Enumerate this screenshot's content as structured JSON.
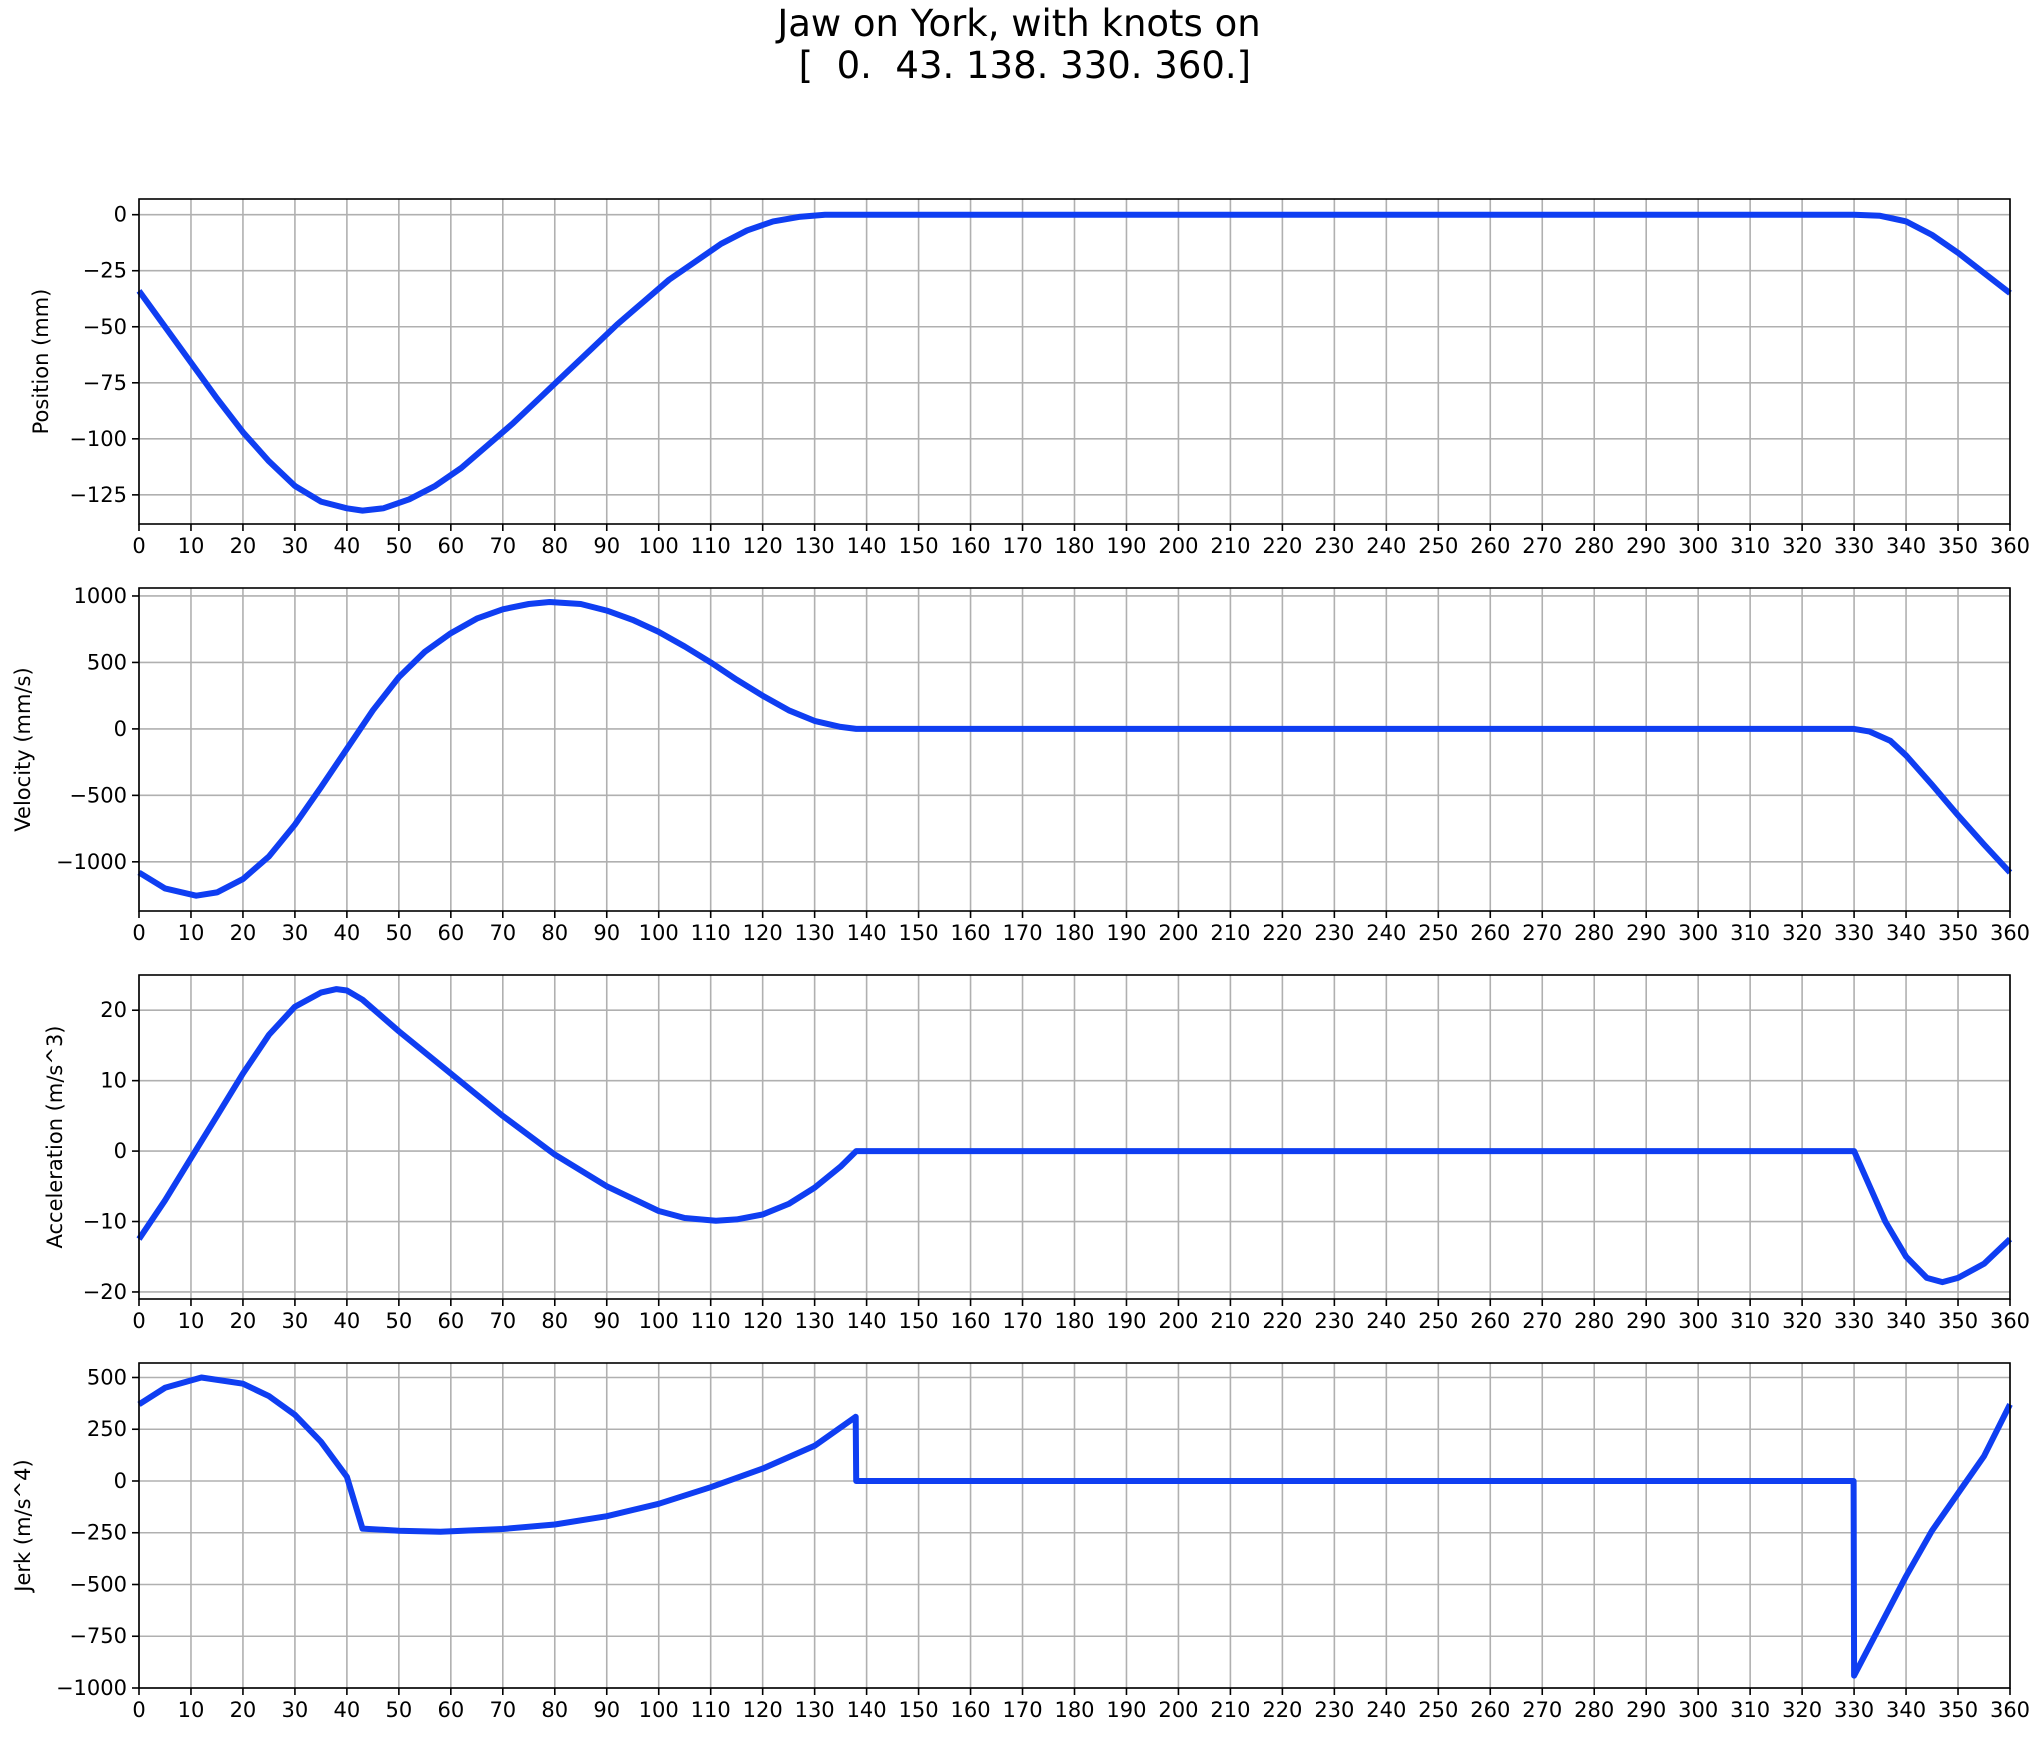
{
  "title": {
    "line1": "Jaw on York, with knots on",
    "line2": " [  0.  43. 138. 330. 360.]"
  },
  "colors": {
    "line": "#0f3ef2",
    "grid": "#b0b0b0",
    "axes": "#000000"
  },
  "chart_data": [
    {
      "type": "line",
      "ylabel": "Position (mm)",
      "xlim": [
        0,
        360
      ],
      "ylim": [
        -138,
        7
      ],
      "xticks": [
        0,
        10,
        20,
        30,
        40,
        50,
        60,
        70,
        80,
        90,
        100,
        110,
        120,
        130,
        140,
        150,
        160,
        170,
        180,
        190,
        200,
        210,
        220,
        230,
        240,
        250,
        260,
        270,
        280,
        290,
        300,
        310,
        320,
        330,
        340,
        350,
        360
      ],
      "yticks": [
        0,
        -25,
        -50,
        -75,
        -100,
        -125
      ],
      "ytick_labels": [
        "0",
        "−25",
        "−50",
        "−75",
        "−100",
        "−125"
      ],
      "grid": true,
      "x": [
        0,
        5,
        10,
        15,
        20,
        25,
        30,
        35,
        40,
        43,
        47,
        52,
        57,
        62,
        67,
        72,
        77,
        82,
        87,
        92,
        97,
        102,
        107,
        112,
        117,
        122,
        127,
        132,
        138,
        150,
        200,
        250,
        300,
        330,
        335,
        340,
        345,
        350,
        355,
        360
      ],
      "y": [
        -34,
        -50,
        -66,
        -82,
        -97,
        -110,
        -121,
        -128,
        -131,
        -132,
        -131,
        -127,
        -121,
        -113,
        -103,
        -93,
        -82,
        -71,
        -60,
        -49,
        -39,
        -29,
        -21,
        -13,
        -7,
        -3,
        -1,
        0,
        0,
        0,
        0,
        0,
        0,
        0,
        -0.5,
        -3,
        -9,
        -17,
        -26,
        -35
      ]
    },
    {
      "type": "line",
      "ylabel": "Velocity (mm/s)",
      "xlim": [
        0,
        360
      ],
      "ylim": [
        -1370,
        1060
      ],
      "xticks": [
        0,
        10,
        20,
        30,
        40,
        50,
        60,
        70,
        80,
        90,
        100,
        110,
        120,
        130,
        140,
        150,
        160,
        170,
        180,
        190,
        200,
        210,
        220,
        230,
        240,
        250,
        260,
        270,
        280,
        290,
        300,
        310,
        320,
        330,
        340,
        350,
        360
      ],
      "yticks": [
        1000,
        500,
        0,
        -500,
        -1000
      ],
      "ytick_labels": [
        "1000",
        "500",
        "0",
        "−500",
        "−1000"
      ],
      "grid": true,
      "x": [
        0,
        5,
        11,
        15,
        20,
        25,
        30,
        35,
        40,
        45,
        50,
        55,
        60,
        65,
        70,
        75,
        79,
        85,
        90,
        95,
        100,
        105,
        110,
        115,
        120,
        125,
        130,
        135,
        138,
        150,
        200,
        250,
        300,
        330,
        333,
        337,
        340,
        345,
        350,
        355,
        360
      ],
      "y": [
        -1080,
        -1200,
        -1255,
        -1230,
        -1130,
        -960,
        -720,
        -440,
        -150,
        140,
        390,
        580,
        720,
        830,
        900,
        940,
        955,
        940,
        890,
        820,
        730,
        620,
        500,
        370,
        250,
        140,
        60,
        15,
        0,
        0,
        0,
        0,
        0,
        0,
        -20,
        -90,
        -200,
        -420,
        -650,
        -870,
        -1080
      ]
    },
    {
      "type": "line",
      "ylabel": "Acceleration (m/s^3)",
      "xlim": [
        0,
        360
      ],
      "ylim": [
        -21,
        25
      ],
      "xticks": [
        0,
        10,
        20,
        30,
        40,
        50,
        60,
        70,
        80,
        90,
        100,
        110,
        120,
        130,
        140,
        150,
        160,
        170,
        180,
        190,
        200,
        210,
        220,
        230,
        240,
        250,
        260,
        270,
        280,
        290,
        300,
        310,
        320,
        330,
        340,
        350,
        360
      ],
      "yticks": [
        20,
        10,
        0,
        -10,
        -20
      ],
      "ytick_labels": [
        "20",
        "10",
        "0",
        "−10",
        "−20"
      ],
      "grid": true,
      "x": [
        0,
        5,
        10,
        15,
        20,
        25,
        30,
        35,
        38,
        40,
        43,
        50,
        60,
        70,
        80,
        90,
        100,
        105,
        111,
        115,
        120,
        125,
        130,
        135,
        138,
        150,
        200,
        250,
        300,
        330,
        333,
        336,
        340,
        344,
        347,
        350,
        355,
        360
      ],
      "y": [
        -12.5,
        -7,
        -1,
        5,
        11,
        16.5,
        20.5,
        22.5,
        23,
        22.8,
        21.5,
        17,
        11,
        5,
        -0.5,
        -5,
        -8.5,
        -9.5,
        -9.9,
        -9.7,
        -9,
        -7.5,
        -5.2,
        -2.2,
        0,
        0,
        0,
        0,
        0,
        0,
        -5,
        -10,
        -15,
        -18,
        -18.6,
        -18,
        -16,
        -12.5
      ]
    },
    {
      "type": "line",
      "ylabel": "Jerk (m/s^4)",
      "xlim": [
        0,
        360
      ],
      "ylim": [
        -1000,
        570
      ],
      "xticks": [
        0,
        10,
        20,
        30,
        40,
        50,
        60,
        70,
        80,
        90,
        100,
        110,
        120,
        130,
        140,
        150,
        160,
        170,
        180,
        190,
        200,
        210,
        220,
        230,
        240,
        250,
        260,
        270,
        280,
        290,
        300,
        310,
        320,
        330,
        340,
        350,
        360
      ],
      "yticks": [
        500,
        250,
        0,
        -250,
        -500,
        -750,
        -1000
      ],
      "ytick_labels": [
        "500",
        "250",
        "0",
        "−250",
        "−500",
        "−750",
        "−1000"
      ],
      "grid": true,
      "x": [
        0,
        5,
        12,
        20,
        25,
        30,
        35,
        40,
        43,
        50,
        58,
        70,
        80,
        90,
        100,
        110,
        120,
        130,
        137.9,
        138,
        150,
        200,
        250,
        300,
        329.9,
        330,
        335,
        340,
        345,
        350,
        355,
        360
      ],
      "y": [
        370,
        450,
        500,
        470,
        410,
        320,
        190,
        20,
        -230,
        -240,
        -245,
        -232,
        -210,
        -170,
        -110,
        -30,
        60,
        170,
        310,
        0,
        0,
        0,
        0,
        0,
        0,
        -940,
        -700,
        -460,
        -240,
        -60,
        120,
        370
      ]
    }
  ]
}
